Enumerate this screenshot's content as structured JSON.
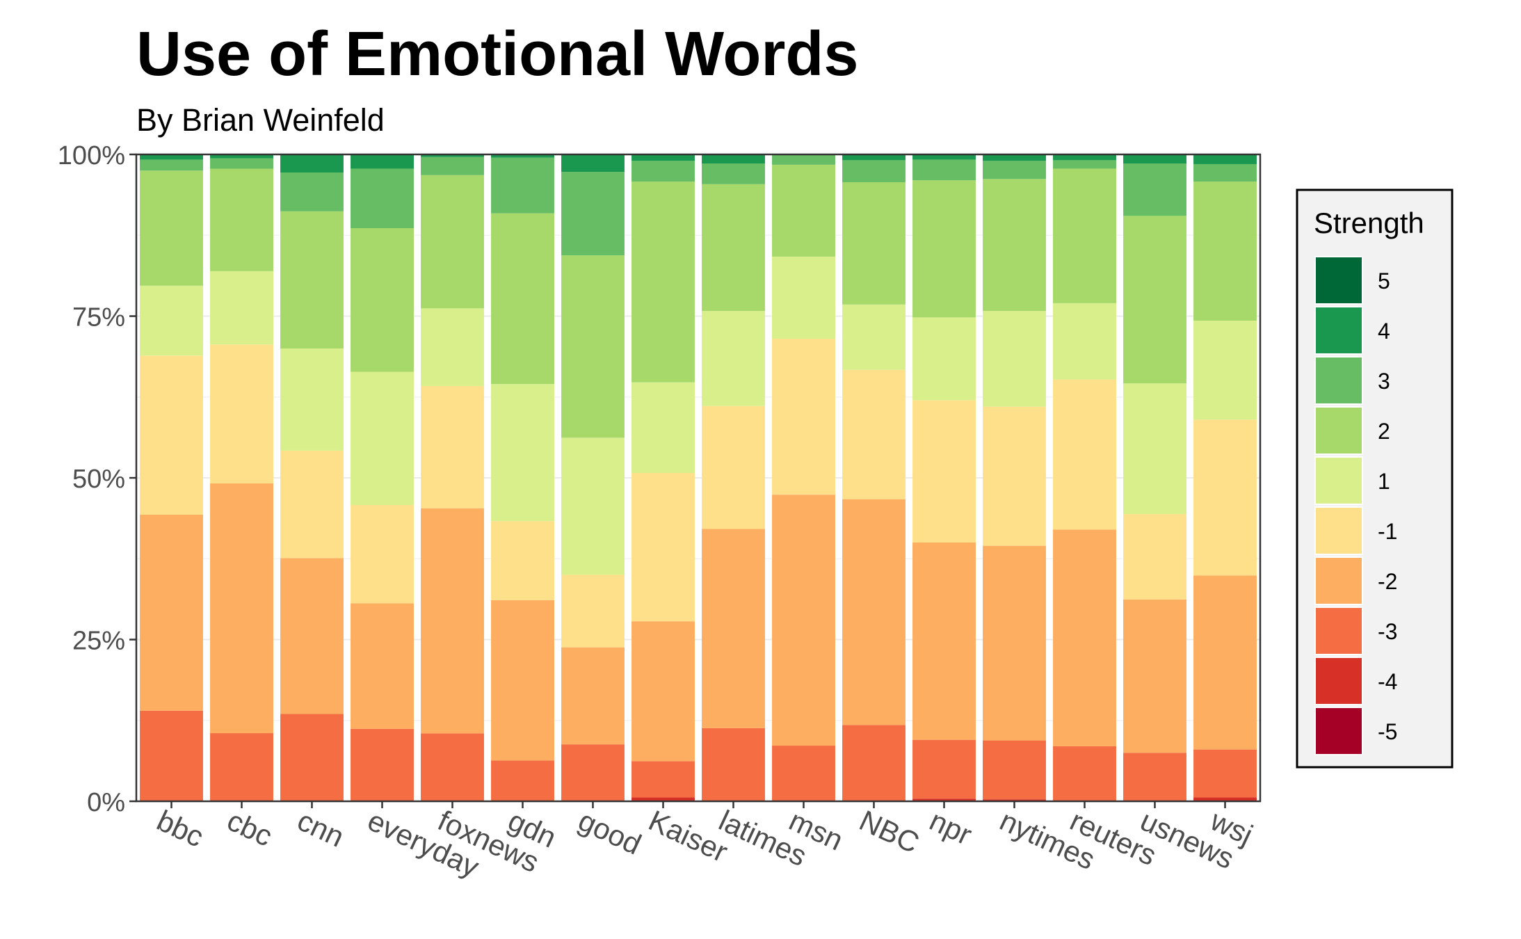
{
  "chart_data": {
    "type": "bar",
    "stacked": true,
    "normalized": true,
    "title": "Use of Emotional Words",
    "subtitle": "By Brian Weinfeld",
    "xlabel": "",
    "ylabel": "",
    "ylim": [
      0,
      100
    ],
    "yticks": [
      "0%",
      "25%",
      "50%",
      "75%",
      "100%"
    ],
    "categories": [
      "bbc",
      "cbc",
      "cnn",
      "everyday",
      "foxnews",
      "gdn",
      "good",
      "Kaiser",
      "latimes",
      "msn",
      "NBC",
      "npr",
      "nytimes",
      "reuters",
      "usnews",
      "wsj"
    ],
    "legend": {
      "title": "Strength",
      "position": "right"
    },
    "series": [
      {
        "name": "-5",
        "color": "#a50026",
        "values": [
          0,
          0,
          0,
          0,
          0,
          0,
          0,
          0,
          0,
          0,
          0,
          0,
          0,
          0,
          0,
          0
        ]
      },
      {
        "name": "-4",
        "color": "#d73027",
        "values": [
          0,
          0,
          0,
          0,
          0,
          0,
          0,
          0.6,
          0,
          0,
          0,
          0.4,
          0.3,
          0,
          0,
          0.6
        ]
      },
      {
        "name": "-3",
        "color": "#f46d43",
        "values": [
          14.0,
          10.5,
          13.5,
          11.2,
          10.5,
          6.3,
          8.8,
          5.6,
          11.3,
          8.6,
          11.8,
          9.1,
          9.1,
          8.5,
          7.5,
          7.4
        ]
      },
      {
        "name": "-2",
        "color": "#fdae61",
        "values": [
          30.3,
          38.5,
          24.1,
          19.4,
          34.8,
          24.8,
          15.0,
          21.6,
          30.8,
          38.8,
          34.9,
          30.5,
          30.1,
          33.5,
          23.7,
          26.9
        ]
      },
      {
        "name": "-1",
        "color": "#fee08b",
        "values": [
          24.6,
          21.4,
          16.6,
          15.2,
          18.9,
          12.2,
          11.2,
          22.9,
          19.0,
          24.1,
          20.0,
          22.0,
          21.5,
          23.2,
          13.2,
          24.1
        ]
      },
      {
        "name": "1",
        "color": "#d9ef8b",
        "values": [
          10.8,
          11.3,
          15.8,
          20.6,
          12.0,
          21.2,
          21.2,
          14.0,
          14.7,
          12.7,
          10.1,
          12.8,
          14.8,
          11.8,
          20.2,
          15.3
        ]
      },
      {
        "name": "2",
        "color": "#a6d96a",
        "values": [
          17.8,
          15.8,
          21.2,
          22.2,
          20.6,
          26.4,
          28.2,
          31.0,
          19.6,
          14.2,
          18.9,
          21.2,
          20.4,
          20.8,
          25.9,
          21.5
        ]
      },
      {
        "name": "3",
        "color": "#66bd63",
        "values": [
          1.7,
          1.6,
          6.0,
          9.2,
          2.8,
          8.6,
          12.9,
          3.2,
          3.2,
          1.6,
          3.4,
          3.2,
          2.8,
          1.3,
          8.1,
          2.7
        ]
      },
      {
        "name": "4",
        "color": "#1a9850",
        "values": [
          0.8,
          0.6,
          2.8,
          2.2,
          0.4,
          0.5,
          2.7,
          1.0,
          1.4,
          0,
          0.9,
          0.8,
          1.0,
          0.9,
          1.4,
          1.5
        ]
      },
      {
        "name": "5",
        "color": "#006837",
        "values": [
          0,
          0,
          0,
          0,
          0,
          0,
          0,
          0,
          0,
          0,
          0,
          0,
          0,
          0,
          0,
          0
        ]
      }
    ]
  }
}
